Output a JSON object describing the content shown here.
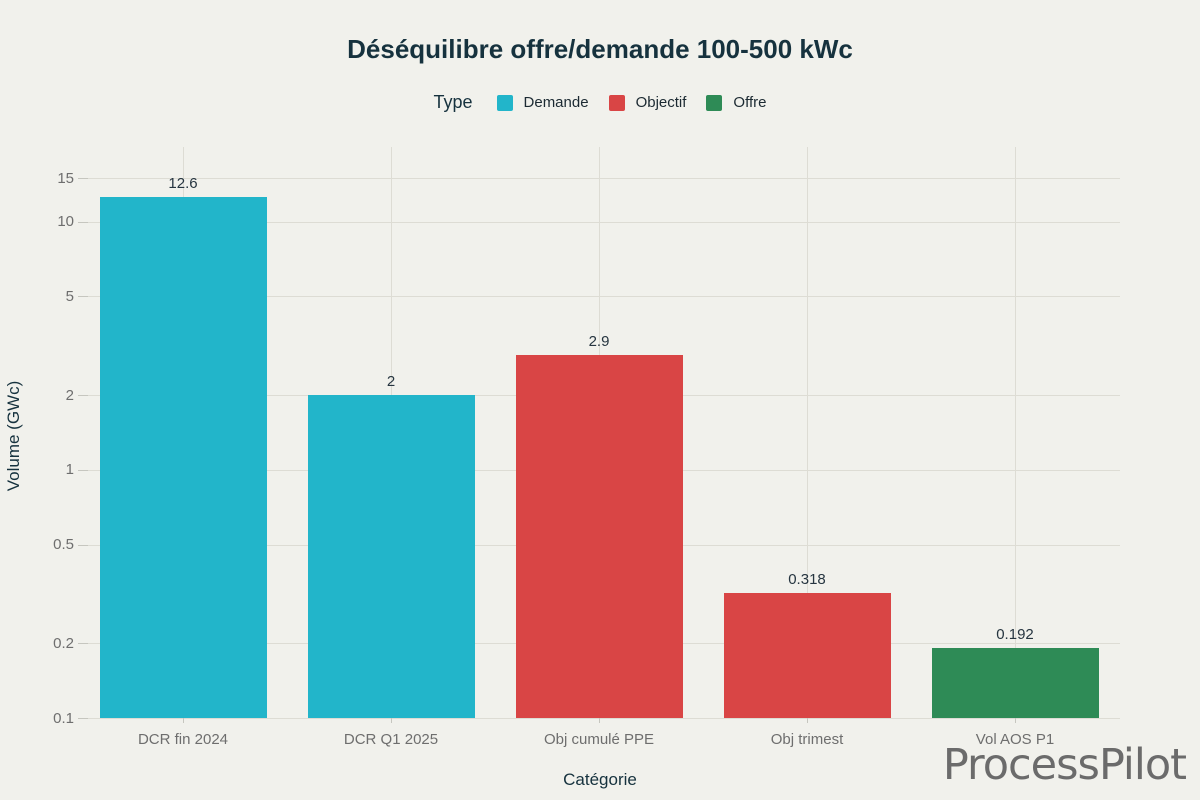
{
  "title": "Déséquilibre offre/demande 100-500 kWc",
  "legend": {
    "title": "Type",
    "items": [
      {
        "label": "Demande",
        "color": "#22b5ca"
      },
      {
        "label": "Objectif",
        "color": "#d94545"
      },
      {
        "label": "Offre",
        "color": "#2e8b56"
      }
    ]
  },
  "chart_data": {
    "type": "bar",
    "title": "Déséquilibre offre/demande 100-500 kWc",
    "xlabel": "Catégorie",
    "ylabel": "Volume (GWc)",
    "categories": [
      "DCR fin 2024",
      "DCR Q1 2025",
      "Obj cumulé PPE",
      "Obj trimest",
      "Vol AOS P1"
    ],
    "values": [
      12.6,
      2,
      2.9,
      0.318,
      0.192
    ],
    "value_labels": [
      "12.6",
      "2",
      "2.9",
      "0.318",
      "0.192"
    ],
    "series": [
      {
        "name": "Demande",
        "color": "#22b5ca",
        "categories": [
          "DCR fin 2024",
          "DCR Q1 2025"
        ],
        "values": [
          12.6,
          2
        ]
      },
      {
        "name": "Objectif",
        "color": "#d94545",
        "categories": [
          "Obj cumulé PPE",
          "Obj trimest"
        ],
        "values": [
          2.9,
          0.318
        ]
      },
      {
        "name": "Offre",
        "color": "#2e8b56",
        "categories": [
          "Vol AOS P1"
        ],
        "values": [
          0.192
        ]
      }
    ],
    "bar_types": [
      "Demande",
      "Demande",
      "Objectif",
      "Objectif",
      "Offre"
    ],
    "bar_colors": [
      "#22b5ca",
      "#22b5ca",
      "#d94545",
      "#d94545",
      "#2e8b56"
    ],
    "yscale": "log",
    "ylim": [
      0.1,
      20
    ],
    "yticks": [
      0.1,
      0.2,
      0.5,
      1,
      2,
      5,
      10,
      15
    ],
    "ytick_labels": [
      "0.1",
      "0.2",
      "0.5",
      "1",
      "2",
      "5",
      "10",
      "15"
    ],
    "grid": true,
    "legend_position": "top"
  },
  "watermark": "ProcessPilot",
  "colors": {
    "background": "#f1f1ec",
    "title_text": "#16323e",
    "tick_text": "#6e6e6e",
    "value_label_text": "#263540",
    "gridline": "#dddcd4",
    "demande": "#22b5ca",
    "objectif": "#d94545",
    "offre": "#2e8b56",
    "watermark_text": "#6b6b6b"
  }
}
